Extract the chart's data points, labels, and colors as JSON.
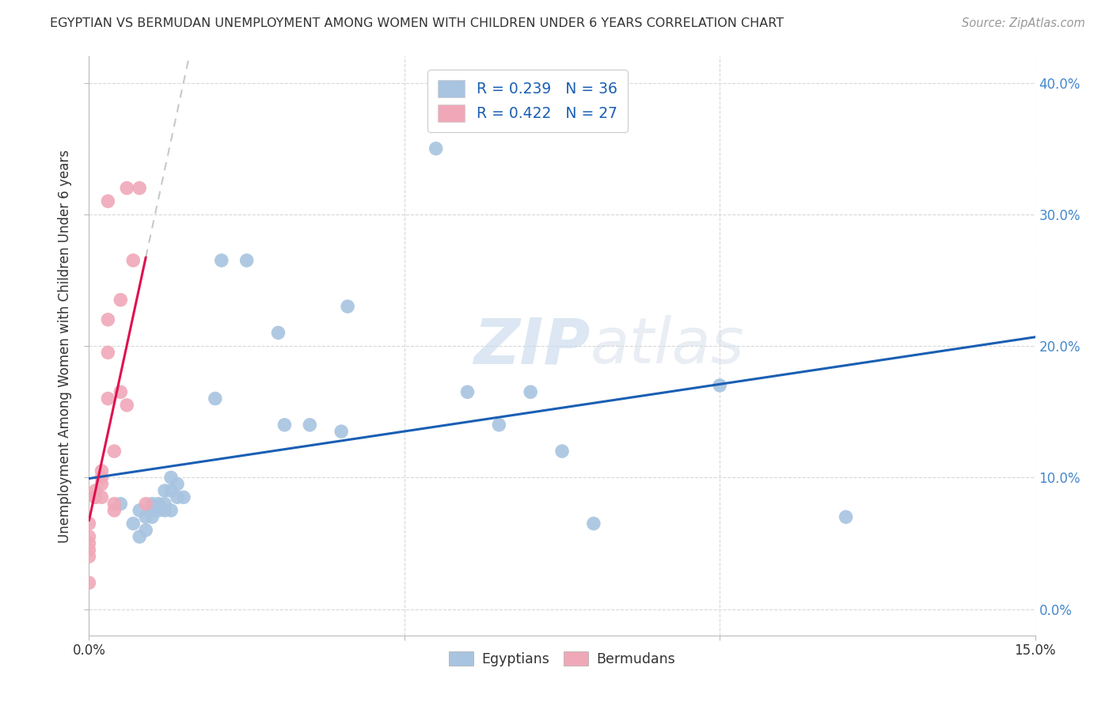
{
  "title": "EGYPTIAN VS BERMUDAN UNEMPLOYMENT AMONG WOMEN WITH CHILDREN UNDER 6 YEARS CORRELATION CHART",
  "source": "Source: ZipAtlas.com",
  "ylabel": "Unemployment Among Women with Children Under 6 years",
  "xlim": [
    0.0,
    0.15
  ],
  "ylim": [
    -0.02,
    0.42
  ],
  "r_egyptian": 0.239,
  "n_egyptian": 36,
  "r_bermudan": 0.422,
  "n_bermudan": 27,
  "egyptian_color": "#a8c4e0",
  "bermudan_color": "#f0a8b8",
  "trendline_egyptian_color": "#1a5fb4",
  "trendline_bermudan_color": "#e01050",
  "trendline_ref_color": "#c8c8c8",
  "background_color": "#ffffff",
  "watermark_zip": "ZIP",
  "watermark_atlas": "atlas",
  "egyptian_x": [
    0.005,
    0.007,
    0.008,
    0.008,
    0.009,
    0.009,
    0.01,
    0.01,
    0.01,
    0.011,
    0.011,
    0.012,
    0.012,
    0.012,
    0.013,
    0.013,
    0.013,
    0.014,
    0.014,
    0.015,
    0.02,
    0.021,
    0.025,
    0.03,
    0.031,
    0.035,
    0.04,
    0.041,
    0.055,
    0.06,
    0.065,
    0.07,
    0.075,
    0.08,
    0.1,
    0.12
  ],
  "egyptian_y": [
    0.08,
    0.065,
    0.075,
    0.055,
    0.07,
    0.06,
    0.08,
    0.07,
    0.075,
    0.08,
    0.075,
    0.09,
    0.08,
    0.075,
    0.075,
    0.1,
    0.09,
    0.095,
    0.085,
    0.085,
    0.16,
    0.265,
    0.265,
    0.21,
    0.14,
    0.14,
    0.135,
    0.23,
    0.35,
    0.165,
    0.14,
    0.165,
    0.12,
    0.065,
    0.17,
    0.07
  ],
  "bermudan_x": [
    0.0,
    0.0,
    0.0,
    0.0,
    0.0,
    0.0,
    0.001,
    0.001,
    0.001,
    0.002,
    0.002,
    0.002,
    0.002,
    0.003,
    0.003,
    0.003,
    0.003,
    0.004,
    0.004,
    0.004,
    0.005,
    0.005,
    0.006,
    0.006,
    0.007,
    0.008,
    0.009
  ],
  "bermudan_y": [
    0.02,
    0.04,
    0.045,
    0.05,
    0.055,
    0.065,
    0.085,
    0.085,
    0.09,
    0.095,
    0.1,
    0.105,
    0.085,
    0.16,
    0.195,
    0.22,
    0.31,
    0.075,
    0.08,
    0.12,
    0.165,
    0.235,
    0.155,
    0.32,
    0.265,
    0.32,
    0.08
  ],
  "figsize": [
    14.06,
    8.92
  ],
  "dpi": 100
}
